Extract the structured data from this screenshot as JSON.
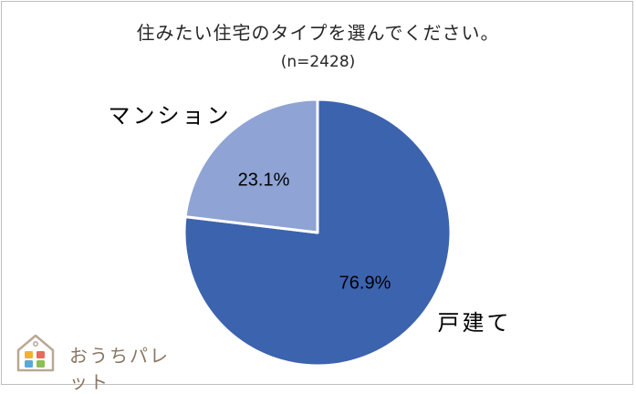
{
  "chart_data": {
    "type": "pie",
    "title": "住みたい住宅のタイプを選んでください。",
    "subtitle": "(n=2428)",
    "slices": [
      {
        "label": "戸建て",
        "value": 76.9,
        "value_label": "76.9%",
        "color": "#3c63ad"
      },
      {
        "label": "マンション",
        "value": 23.1,
        "value_label": "23.1%",
        "color": "#8fa3d4"
      }
    ],
    "start": "12 o'clock",
    "direction": "clockwise"
  },
  "logo": {
    "text": "おうちパレット",
    "colors": [
      "#f2b134",
      "#e86a5a",
      "#5aa8d8",
      "#8ac054"
    ]
  }
}
